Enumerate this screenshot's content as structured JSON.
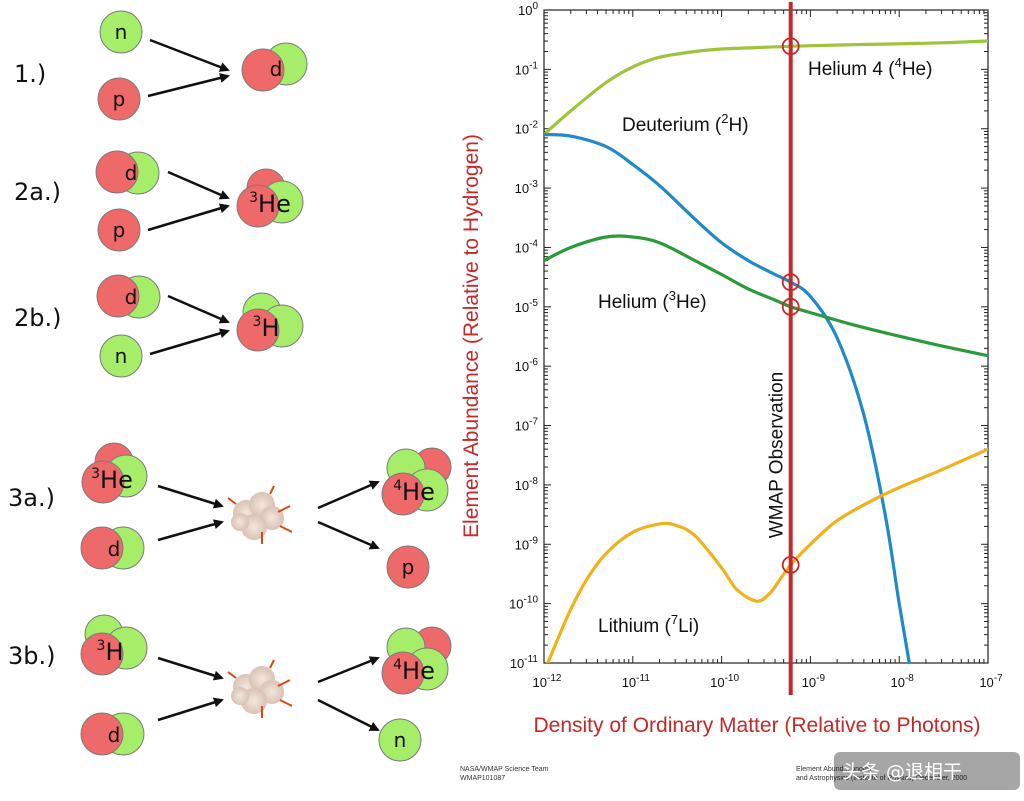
{
  "reactions": {
    "r1": {
      "step": "1.)",
      "in1": "n",
      "in2": "p",
      "out": "d"
    },
    "r2a": {
      "step": "2a.)",
      "in1": "d",
      "in2": "p",
      "out_sup": "3",
      "out": "He"
    },
    "r2b": {
      "step": "2b.)",
      "in1": "d",
      "in2": "n",
      "out_sup": "3",
      "out": "H"
    },
    "r3a": {
      "step": "3a.)",
      "in1_sup": "3",
      "in1": "He",
      "in2": "d",
      "out1_sup": "4",
      "out1": "He",
      "out2": "p"
    },
    "r3b": {
      "step": "3b.)",
      "in1_sup": "3",
      "in1": "H",
      "in2": "d",
      "out1_sup": "4",
      "out1": "He",
      "out2": "n"
    }
  },
  "colors": {
    "proton": "#ee6a6a",
    "neutron": "#a6ee6a",
    "helium4": "#9ec43a",
    "deuterium": "#1f8ac5",
    "helium3": "#2a9a3a",
    "lithium7": "#f0b21c",
    "wmap": "#c62828"
  },
  "chart_data": {
    "type": "line",
    "xlabel": "Density of Ordinary Matter (Relative to Photons)",
    "ylabel": "Element Abundance (Relative to Hydrogen)",
    "x_scale": "log",
    "y_scale": "log",
    "xlim": [
      1e-12,
      1e-07
    ],
    "ylim": [
      1e-11,
      1
    ],
    "x_ticks": [
      {
        "base": "10",
        "exp": "-12",
        "value": 1e-12
      },
      {
        "base": "10",
        "exp": "-11",
        "value": 1e-11
      },
      {
        "base": "10",
        "exp": "-10",
        "value": 1e-10
      },
      {
        "base": "10",
        "exp": "-9",
        "value": 1e-09
      },
      {
        "base": "10",
        "exp": "-8",
        "value": 1e-08
      },
      {
        "base": "10",
        "exp": "-7",
        "value": 1e-07
      }
    ],
    "y_ticks": [
      {
        "base": "10",
        "exp": "0",
        "value": 1
      },
      {
        "base": "10",
        "exp": "-1",
        "value": 0.1
      },
      {
        "base": "10",
        "exp": "-2",
        "value": 0.01
      },
      {
        "base": "10",
        "exp": "-3",
        "value": 0.001
      },
      {
        "base": "10",
        "exp": "-4",
        "value": 0.0001
      },
      {
        "base": "10",
        "exp": "-5",
        "value": 1e-05
      },
      {
        "base": "10",
        "exp": "-6",
        "value": 1e-06
      },
      {
        "base": "10",
        "exp": "-7",
        "value": 1e-07
      },
      {
        "base": "10",
        "exp": "-8",
        "value": 1e-08
      },
      {
        "base": "10",
        "exp": "-9",
        "value": 1e-09
      },
      {
        "base": "10",
        "exp": "-10",
        "value": 1e-10
      },
      {
        "base": "10",
        "exp": "-11",
        "value": 1e-11
      }
    ],
    "series": [
      {
        "name": "Helium 4",
        "label_text": "Helium 4 (",
        "label_sup": "4",
        "label_end": "He)",
        "color": "#9ec43a",
        "x": [
          1e-12,
          2e-12,
          5e-12,
          1e-11,
          2e-11,
          5e-11,
          1e-10,
          3e-10,
          6e-10,
          1e-09,
          3e-09,
          1e-08,
          3e-08,
          1e-07
        ],
        "y": [
          0.008,
          0.02,
          0.06,
          0.11,
          0.16,
          0.2,
          0.22,
          0.235,
          0.245,
          0.25,
          0.26,
          0.27,
          0.28,
          0.3
        ]
      },
      {
        "name": "Deuterium",
        "label_text": "Deuterium (",
        "label_sup": "2",
        "label_end": "H)",
        "color": "#1f8ac5",
        "x": [
          1e-12,
          2e-12,
          5e-12,
          1e-11,
          2e-11,
          5e-11,
          1e-10,
          2e-10,
          4e-10,
          6e-10,
          1e-09,
          2e-09,
          4e-09,
          7e-09,
          1e-08,
          1.3e-08
        ],
        "y": [
          0.008,
          0.0075,
          0.005,
          0.0025,
          0.0011,
          0.0003,
          0.00012,
          6e-05,
          3.5e-05,
          2.6e-05,
          1.5e-05,
          3e-06,
          1.5e-07,
          3e-09,
          1e-10,
          1e-11
        ]
      },
      {
        "name": "Helium 3",
        "label_text": "Helium (",
        "label_sup": "3",
        "label_end": "He)",
        "color": "#2a9a3a",
        "x": [
          1e-12,
          2e-12,
          5e-12,
          1e-11,
          2e-11,
          5e-11,
          1e-10,
          2e-10,
          4e-10,
          6e-10,
          1e-09,
          3e-09,
          1e-08,
          3e-08,
          1e-07
        ],
        "y": [
          6e-05,
          0.0001,
          0.00015,
          0.00015,
          0.00012,
          6e-05,
          3.5e-05,
          2e-05,
          1.3e-05,
          1e-05,
          8e-06,
          5e-06,
          3.2e-06,
          2.2e-06,
          1.5e-06
        ]
      },
      {
        "name": "Lithium 7",
        "label_text": "Lithium (",
        "label_sup": "7",
        "label_end": "Li)",
        "color": "#f0b21c",
        "x": [
          1.1e-12,
          1.5e-12,
          2e-12,
          3e-12,
          5e-12,
          1e-11,
          2e-11,
          3e-11,
          5e-11,
          1e-10,
          1.5e-10,
          2.5e-10,
          3.5e-10,
          4.5e-10,
          6e-10,
          1e-09,
          2e-09,
          5e-09,
          1e-08,
          3e-08,
          1e-07
        ],
        "y": [
          1e-11,
          3e-11,
          8e-11,
          2.5e-10,
          7e-10,
          1.6e-09,
          2.2e-09,
          2.1e-09,
          1.4e-09,
          4e-10,
          1.7e-10,
          1.1e-10,
          1.5e-10,
          2.5e-10,
          4.5e-10,
          1e-09,
          2.5e-09,
          5.5e-09,
          9e-09,
          1.8e-08,
          4e-08
        ]
      }
    ],
    "observation": {
      "label": "WMAP Observation",
      "x": 6e-10,
      "markers": [
        {
          "series": "Helium 4",
          "y": 0.245
        },
        {
          "series": "Deuterium",
          "y": 2.6e-05
        },
        {
          "series": "Helium 3",
          "y": 1e-05
        },
        {
          "series": "Lithium 7",
          "y": 4.5e-10
        }
      ]
    }
  },
  "credits": {
    "left_line1": "NASA/WMAP Science Team",
    "left_line2": "WMAP101087",
    "right_line1": "Element Abund...                                        onomy",
    "right_line2": "and Astrophysics (Institute of Physics) December, 2000"
  },
  "watermark": "头条 @退相干"
}
